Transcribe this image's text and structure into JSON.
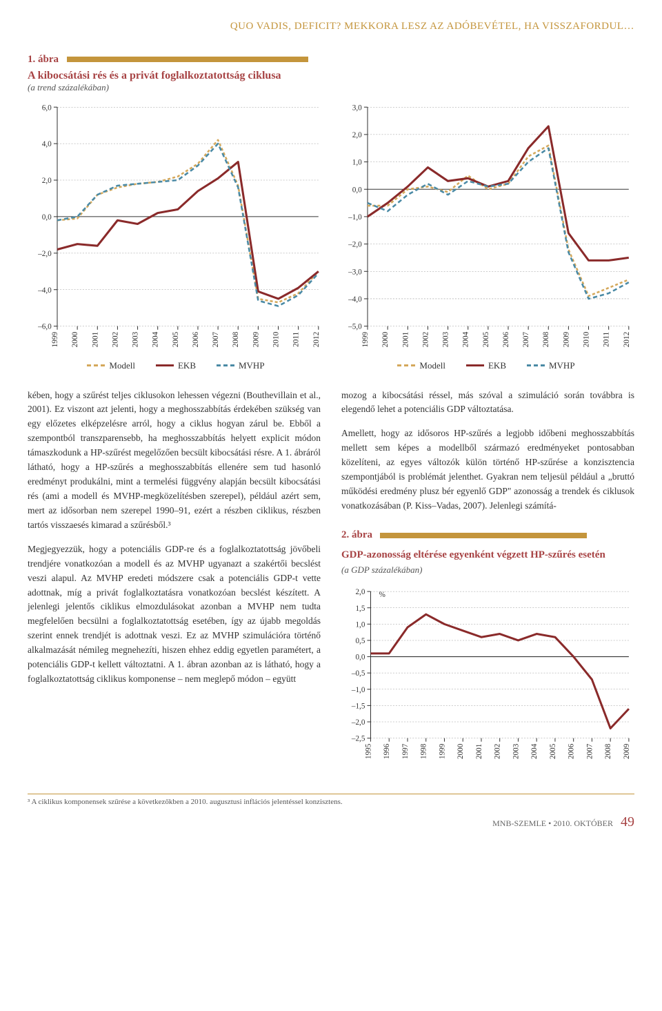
{
  "header": "QUO VADIS, DEFICIT? MEKKORA LESZ AZ ADÓBEVÉTEL, HA VISSZAFORDUL…",
  "fig1": {
    "num": "1. ábra",
    "title": "A kibocsátási rés és a privát foglalkoztatottság ciklusa",
    "sub": "(a trend százalékában)"
  },
  "chart1a": {
    "type": "line",
    "years": [
      "1999",
      "2000",
      "2001",
      "2002",
      "2003",
      "2004",
      "2005",
      "2006",
      "2007",
      "2008",
      "2009",
      "2010",
      "2011",
      "2012"
    ],
    "ymin": -6,
    "ymax": 6,
    "ystep": 2,
    "series": {
      "modell": {
        "color": "#d4a85b",
        "dash": "4 3",
        "width": 2.5,
        "values": [
          -0.2,
          -0.1,
          1.2,
          1.6,
          1.8,
          1.9,
          2.2,
          2.9,
          4.2,
          1.7,
          -4.5,
          -4.7,
          -4.2,
          -3.0
        ]
      },
      "ekb": {
        "color": "#8a2a2a",
        "dash": "none",
        "width": 3,
        "values": [
          -1.8,
          -1.5,
          -1.6,
          -0.2,
          -0.4,
          0.2,
          0.4,
          1.4,
          2.1,
          3.0,
          -4.1,
          -4.5,
          -3.9,
          -3.0
        ]
      },
      "mvhp": {
        "color": "#4a8aa5",
        "dash": "6 4",
        "width": 2.5,
        "values": [
          -0.2,
          0.0,
          1.2,
          1.7,
          1.8,
          1.9,
          2.0,
          2.8,
          4.0,
          1.6,
          -4.6,
          -4.9,
          -4.3,
          -3.1
        ]
      }
    }
  },
  "chart1b": {
    "type": "line",
    "years": [
      "1999",
      "2000",
      "2001",
      "2002",
      "2003",
      "2004",
      "2005",
      "2006",
      "2007",
      "2008",
      "2009",
      "2010",
      "2011",
      "2012"
    ],
    "ymin": -5,
    "ymax": 3,
    "ystep": 1,
    "series": {
      "modell": {
        "color": "#d4a85b",
        "dash": "4 3",
        "width": 2.5,
        "values": [
          -0.6,
          -0.6,
          0.0,
          0.1,
          -0.1,
          0.5,
          0.0,
          0.2,
          1.2,
          1.6,
          -2.2,
          -3.9,
          -3.6,
          -3.3
        ]
      },
      "ekb": {
        "color": "#8a2a2a",
        "dash": "none",
        "width": 3,
        "values": [
          -1.0,
          -0.5,
          0.1,
          0.8,
          0.3,
          0.4,
          0.1,
          0.3,
          1.5,
          2.3,
          -1.6,
          -2.6,
          -2.6,
          -2.5
        ]
      },
      "mvhp": {
        "color": "#4a8aa5",
        "dash": "6 4",
        "width": 2.5,
        "values": [
          -0.5,
          -0.8,
          -0.2,
          0.2,
          -0.2,
          0.3,
          0.1,
          0.2,
          1.0,
          1.5,
          -2.3,
          -4.0,
          -3.8,
          -3.4
        ]
      }
    }
  },
  "legend": {
    "modell": "Modell",
    "ekb": "EKB",
    "mvhp": "MVHP"
  },
  "body": {
    "col1p1": "kében, hogy a szűrést teljes ciklusokon lehessen végezni (Bouthevillain et al., 2001). Ez viszont azt jelenti, hogy a meghosszabbítás érdekében szükség van egy előzetes elképzelésre arról, hogy a ciklus hogyan zárul be. Ebből a szempontból transzparensebb, ha meghosszabbítás helyett explicit módon támaszkodunk a HP-szűrést megelőzően becsült kibocsátási résre. A 1. ábráról látható, hogy a HP-szűrés a meghosszabbítás ellenére sem tud hasonló eredményt produkálni, mint a termelési függvény alapján becsült kibocsátási rés (ami a modell és MVHP-megközelítésben szerepel), például azért sem, mert az idősorban nem szerepel 1990–91, ezért a részben ciklikus, részben tartós visszaesés kimarad a szűrésből.³",
    "col1p2": "Megjegyezzük, hogy a potenciális GDP-re és a foglalkoztatottság jövőbeli trendjére vonatkozóan a modell és az MVHP ugyanazt a szakértői becslést veszi alapul. Az MVHP eredeti módszere csak a potenciális GDP-t vette adottnak, míg a privát foglalkoztatásra vonatkozóan becslést készített. A jelenlegi jelentős ciklikus elmozdulásokat azonban a MVHP nem tudta megfelelően becsülni a foglalkoztatottság esetében, így az újabb megoldás szerint ennek trendjét is adottnak veszi. Ez az MVHP szimulációra történő alkalmazását némileg megnehezíti, hiszen ehhez eddig egyetlen paramétert, a potenciális GDP-t kellett változtatni. A 1. ábran azonban az is látható, hogy a foglalkoztatottság ciklikus komponense – nem meglepő módon – együtt",
    "col2p1": "mozog a kibocsátási réssel, más szóval a szimuláció során továbbra is elegendő lehet a potenciális GDP változtatása.",
    "col2p2": "Amellett, hogy az idősoros HP-szűrés a legjobb időbeni meghosszabbítás mellett sem képes a modellből származó eredményeket pontosabban közelíteni, az egyes változók külön történő HP-szűrése a konzisztencia szempontjából is problémát jelenthet. Gyakran nem teljesül például a „bruttó működési eredmény plusz bér egyenlő GDP\" azonosság a trendek és ciklusok vonatkozásában (P. Kiss–Vadas, 2007). Jelenlegi számítá-"
  },
  "fig2": {
    "num": "2. ábra",
    "title": "GDP-azonosság eltérése egyenként végzett HP-szűrés esetén",
    "sub": "(a GDP százalékában)"
  },
  "chart2": {
    "type": "line",
    "years": [
      "1995",
      "1996",
      "1997",
      "1998",
      "1999",
      "2000",
      "2001",
      "2002",
      "2003",
      "2004",
      "2005",
      "2006",
      "2007",
      "2008",
      "2009"
    ],
    "ymin": -2.5,
    "ymax": 2.0,
    "ystep": 0.5,
    "ylabel": "%",
    "series": {
      "main": {
        "color": "#8a2a2a",
        "dash": "none",
        "width": 3,
        "values": [
          0.1,
          0.1,
          0.9,
          1.3,
          1.0,
          0.8,
          0.6,
          0.7,
          0.5,
          0.7,
          0.6,
          0.0,
          -0.7,
          -2.2,
          -1.6
        ]
      }
    }
  },
  "footnote": "³ A ciklikus komponensek szűrése a következőkben a 2010. augusztusi inflációs jelentéssel konzisztens.",
  "pagefoot": {
    "text": "MNB-SZEMLE • 2010. OKTÓBER",
    "page": "49"
  }
}
